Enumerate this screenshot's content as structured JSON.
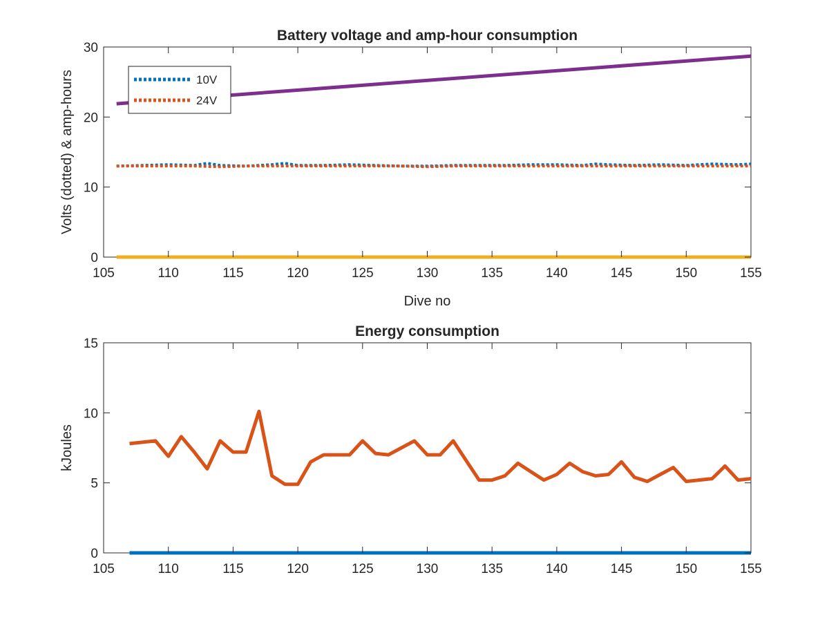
{
  "chart_data": [
    {
      "type": "line",
      "title": "Battery voltage and amp-hour consumption",
      "xlabel": "Dive no",
      "ylabel": "Volts (dotted) & amp-hours",
      "xlim": [
        105,
        155
      ],
      "ylim": [
        0,
        30
      ],
      "xticks": [
        105,
        110,
        115,
        120,
        125,
        130,
        135,
        140,
        145,
        150,
        155
      ],
      "yticks": [
        0,
        10,
        20,
        30
      ],
      "grid": false,
      "legend": {
        "placement": "top-left",
        "entries": [
          "10V",
          "24V"
        ]
      },
      "series": [
        {
          "name": "10V",
          "style": "dotted",
          "color": "#0072BD",
          "x": [
            106,
            108,
            110,
            112,
            113,
            114,
            116,
            118,
            119,
            120,
            122,
            124,
            126,
            128,
            130,
            132,
            134,
            136,
            138,
            140,
            142,
            143,
            144,
            146,
            148,
            150,
            152,
            154,
            155
          ],
          "y": [
            13.0,
            13.1,
            13.2,
            13.1,
            13.4,
            13.1,
            13.0,
            13.2,
            13.4,
            13.1,
            13.1,
            13.2,
            13.1,
            13.0,
            13.0,
            13.1,
            13.1,
            13.1,
            13.2,
            13.2,
            13.1,
            13.3,
            13.2,
            13.1,
            13.2,
            13.1,
            13.3,
            13.2,
            13.3
          ]
        },
        {
          "name": "24V",
          "style": "dotted",
          "color": "#D95319",
          "x": [
            106,
            108,
            110,
            112,
            114,
            116,
            118,
            120,
            122,
            124,
            126,
            128,
            130,
            132,
            134,
            136,
            138,
            140,
            142,
            144,
            146,
            148,
            150,
            152,
            154,
            155
          ],
          "y": [
            13.0,
            13.0,
            13.0,
            13.0,
            12.9,
            13.0,
            13.0,
            13.0,
            13.0,
            13.0,
            13.0,
            13.0,
            12.9,
            13.0,
            13.0,
            13.0,
            13.0,
            13.0,
            13.0,
            13.0,
            13.0,
            13.0,
            13.0,
            13.0,
            13.0,
            13.0
          ]
        },
        {
          "style": "solid",
          "color": "#7E2F8E",
          "x": [
            106,
            155
          ],
          "y": [
            21.9,
            28.7
          ]
        },
        {
          "style": "solid",
          "color": "#EDB120",
          "x": [
            106,
            155
          ],
          "y": [
            0,
            0
          ]
        }
      ]
    },
    {
      "type": "line",
      "title": "Energy consumption",
      "xlabel": "",
      "ylabel": "kJoules",
      "xlim": [
        105,
        155
      ],
      "ylim": [
        0,
        15
      ],
      "xticks": [
        105,
        110,
        115,
        120,
        125,
        130,
        135,
        140,
        145,
        150,
        155
      ],
      "yticks": [
        0,
        5,
        10,
        15
      ],
      "grid": false,
      "series": [
        {
          "style": "solid",
          "color": "#D95319",
          "x": [
            107,
            108,
            109,
            110,
            111,
            112,
            113,
            114,
            115,
            116,
            117,
            118,
            119,
            120,
            121,
            122,
            123,
            124,
            125,
            126,
            127,
            128,
            129,
            130,
            131,
            132,
            133,
            134,
            135,
            136,
            137,
            138,
            139,
            140,
            141,
            142,
            143,
            144,
            145,
            146,
            147,
            148,
            149,
            150,
            151,
            152,
            153,
            154,
            155
          ],
          "y": [
            7.8,
            7.9,
            8.0,
            6.9,
            8.3,
            7.2,
            6.0,
            8.0,
            7.2,
            7.2,
            10.1,
            5.5,
            4.9,
            4.9,
            6.5,
            7.0,
            7.0,
            7.0,
            8.0,
            7.1,
            7.0,
            7.5,
            8.0,
            7.0,
            7.0,
            8.0,
            6.6,
            5.2,
            5.2,
            5.5,
            6.4,
            5.8,
            5.2,
            5.6,
            6.4,
            5.8,
            5.5,
            5.6,
            6.5,
            5.4,
            5.1,
            5.6,
            6.1,
            5.1,
            5.2,
            5.3,
            6.2,
            5.2,
            5.3
          ]
        },
        {
          "style": "solid",
          "color": "#0072BD",
          "x": [
            107,
            155
          ],
          "y": [
            0,
            0
          ]
        }
      ]
    }
  ]
}
